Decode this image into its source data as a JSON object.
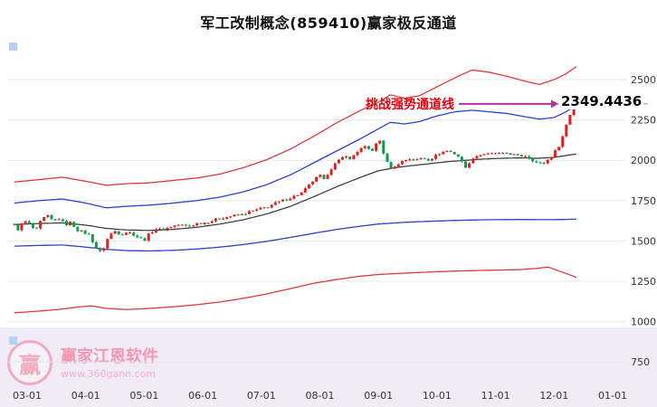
{
  "title": "军工改制概念(859410)赢家极反通道",
  "annotation": {
    "label": "挑战强势通道线",
    "price_label": "2349.4436",
    "arrow_color": "#bb2d9e"
  },
  "watermark": {
    "logo_char": "赢",
    "brand": "赢家江恩软件",
    "url": "www.360gann.com"
  },
  "colors": {
    "up": "#dd2222",
    "down": "#0e9c4a",
    "channel_outer": "#e0393b",
    "channel_inner": "#2f3fd3",
    "mid": "#333333",
    "grid": "#e8e8e8",
    "axis_text": "#333333",
    "level_line": "#999999",
    "marker": "#b5d2ec"
  },
  "chart_data": {
    "type": "candlestick-with-channel",
    "title": "军工改制概念(859410)赢家极反通道",
    "x_ticks": [
      "03-01",
      "04-01",
      "05-01",
      "06-01",
      "07-01",
      "08-01",
      "09-01",
      "10-01",
      "11-01",
      "12-01",
      "01-01"
    ],
    "x_tick_months": [
      3,
      4,
      5,
      6,
      7,
      8,
      9,
      10,
      11,
      12,
      13
    ],
    "y_ticks": [
      2500,
      2250,
      2000,
      1750,
      1500,
      1250,
      1000,
      750
    ],
    "ylim": [
      700,
      2650
    ],
    "x_range_months": [
      2.78,
      12.4
    ],
    "n_candles": 152,
    "last_price": 2349.4436,
    "close_keypoints": [
      [
        2.78,
        1595
      ],
      [
        2.85,
        1570
      ],
      [
        2.95,
        1625
      ],
      [
        3.05,
        1600
      ],
      [
        3.15,
        1560
      ],
      [
        3.25,
        1635
      ],
      [
        3.35,
        1655
      ],
      [
        3.45,
        1620
      ],
      [
        3.55,
        1640
      ],
      [
        3.65,
        1600
      ],
      [
        3.75,
        1615
      ],
      [
        3.85,
        1570
      ],
      [
        3.95,
        1555
      ],
      [
        4.05,
        1540
      ],
      [
        4.15,
        1480
      ],
      [
        4.22,
        1425
      ],
      [
        4.3,
        1450
      ],
      [
        4.4,
        1535
      ],
      [
        4.5,
        1560
      ],
      [
        4.6,
        1540
      ],
      [
        4.7,
        1555
      ],
      [
        4.8,
        1545
      ],
      [
        4.9,
        1520
      ],
      [
        5.0,
        1505
      ],
      [
        5.1,
        1550
      ],
      [
        5.2,
        1575
      ],
      [
        5.3,
        1565
      ],
      [
        5.45,
        1590
      ],
      [
        5.6,
        1600
      ],
      [
        5.75,
        1590
      ],
      [
        5.9,
        1608
      ],
      [
        6.05,
        1615
      ],
      [
        6.2,
        1630
      ],
      [
        6.35,
        1645
      ],
      [
        6.5,
        1655
      ],
      [
        6.65,
        1662
      ],
      [
        6.8,
        1680
      ],
      [
        6.95,
        1695
      ],
      [
        7.1,
        1710
      ],
      [
        7.25,
        1735
      ],
      [
        7.4,
        1755
      ],
      [
        7.55,
        1775
      ],
      [
        7.7,
        1800
      ],
      [
        7.8,
        1840
      ],
      [
        7.9,
        1880
      ],
      [
        8.0,
        1905
      ],
      [
        8.07,
        1875
      ],
      [
        8.15,
        1930
      ],
      [
        8.25,
        1975
      ],
      [
        8.35,
        2005
      ],
      [
        8.45,
        2030
      ],
      [
        8.52,
        2000
      ],
      [
        8.6,
        2045
      ],
      [
        8.7,
        2070
      ],
      [
        8.8,
        2085
      ],
      [
        8.87,
        2050
      ],
      [
        8.95,
        2095
      ],
      [
        9.02,
        2125
      ],
      [
        9.1,
        2030
      ],
      [
        9.17,
        1965
      ],
      [
        9.25,
        1945
      ],
      [
        9.35,
        1985
      ],
      [
        9.45,
        2000
      ],
      [
        9.55,
        2010
      ],
      [
        9.65,
        2000
      ],
      [
        9.75,
        2015
      ],
      [
        9.85,
        2005
      ],
      [
        9.95,
        2020
      ],
      [
        10.05,
        2045
      ],
      [
        10.15,
        2060
      ],
      [
        10.25,
        2050
      ],
      [
        10.35,
        2030
      ],
      [
        10.45,
        1975
      ],
      [
        10.52,
        1950
      ],
      [
        10.6,
        2015
      ],
      [
        10.7,
        2030
      ],
      [
        10.8,
        2040
      ],
      [
        10.9,
        2035
      ],
      [
        11.0,
        2045
      ],
      [
        11.1,
        2035
      ],
      [
        11.2,
        2045
      ],
      [
        11.3,
        2035
      ],
      [
        11.4,
        2025
      ],
      [
        11.5,
        2030
      ],
      [
        11.6,
        2010
      ],
      [
        11.7,
        1985
      ],
      [
        11.8,
        1975
      ],
      [
        11.9,
        2005
      ],
      [
        12.0,
        2045
      ],
      [
        12.08,
        2090
      ],
      [
        12.16,
        2160
      ],
      [
        12.24,
        2260
      ],
      [
        12.32,
        2320
      ],
      [
        12.4,
        2349.4436
      ]
    ],
    "channels": {
      "upper_outer": [
        [
          2.78,
          1865
        ],
        [
          3.2,
          1880
        ],
        [
          3.6,
          1895
        ],
        [
          4.0,
          1870
        ],
        [
          4.35,
          1845
        ],
        [
          4.7,
          1855
        ],
        [
          5.1,
          1860
        ],
        [
          5.5,
          1875
        ],
        [
          5.9,
          1890
        ],
        [
          6.3,
          1915
        ],
        [
          6.7,
          1955
        ],
        [
          7.1,
          2005
        ],
        [
          7.5,
          2070
        ],
        [
          7.9,
          2150
        ],
        [
          8.3,
          2235
        ],
        [
          8.7,
          2310
        ],
        [
          9.0,
          2360
        ],
        [
          9.2,
          2405
        ],
        [
          9.45,
          2385
        ],
        [
          9.7,
          2400
        ],
        [
          10.0,
          2455
        ],
        [
          10.3,
          2510
        ],
        [
          10.6,
          2560
        ],
        [
          10.9,
          2545
        ],
        [
          11.2,
          2520
        ],
        [
          11.5,
          2490
        ],
        [
          11.75,
          2470
        ],
        [
          12.0,
          2500
        ],
        [
          12.2,
          2535
        ],
        [
          12.4,
          2585
        ]
      ],
      "upper_inner": [
        [
          2.78,
          1735
        ],
        [
          3.2,
          1750
        ],
        [
          3.6,
          1760
        ],
        [
          4.0,
          1735
        ],
        [
          4.35,
          1705
        ],
        [
          4.7,
          1715
        ],
        [
          5.1,
          1722
        ],
        [
          5.5,
          1735
        ],
        [
          5.9,
          1750
        ],
        [
          6.3,
          1772
        ],
        [
          6.7,
          1805
        ],
        [
          7.1,
          1850
        ],
        [
          7.5,
          1910
        ],
        [
          7.9,
          1985
        ],
        [
          8.3,
          2060
        ],
        [
          8.7,
          2135
        ],
        [
          9.0,
          2195
        ],
        [
          9.2,
          2235
        ],
        [
          9.45,
          2225
        ],
        [
          9.7,
          2240
        ],
        [
          10.0,
          2275
        ],
        [
          10.3,
          2300
        ],
        [
          10.6,
          2310
        ],
        [
          10.9,
          2300
        ],
        [
          11.2,
          2290
        ],
        [
          11.5,
          2270
        ],
        [
          11.75,
          2255
        ],
        [
          12.0,
          2265
        ],
        [
          12.2,
          2300
        ],
        [
          12.4,
          2345
        ]
      ],
      "middle": [
        [
          2.78,
          1602
        ],
        [
          3.2,
          1608
        ],
        [
          3.6,
          1612
        ],
        [
          4.0,
          1598
        ],
        [
          4.35,
          1578
        ],
        [
          4.7,
          1568
        ],
        [
          5.1,
          1565
        ],
        [
          5.5,
          1572
        ],
        [
          5.9,
          1585
        ],
        [
          6.3,
          1605
        ],
        [
          6.7,
          1632
        ],
        [
          7.1,
          1668
        ],
        [
          7.5,
          1715
        ],
        [
          7.9,
          1775
        ],
        [
          8.3,
          1838
        ],
        [
          8.7,
          1895
        ],
        [
          9.0,
          1935
        ],
        [
          9.3,
          1955
        ],
        [
          9.6,
          1968
        ],
        [
          9.9,
          1980
        ],
        [
          10.2,
          1992
        ],
        [
          10.5,
          2000
        ],
        [
          10.8,
          2008
        ],
        [
          11.1,
          2012
        ],
        [
          11.4,
          2015
        ],
        [
          11.7,
          2012
        ],
        [
          12.0,
          2018
        ],
        [
          12.4,
          2040
        ]
      ],
      "lower_inner": [
        [
          2.78,
          1468
        ],
        [
          3.2,
          1472
        ],
        [
          3.6,
          1475
        ],
        [
          4.0,
          1462
        ],
        [
          4.35,
          1448
        ],
        [
          4.7,
          1440
        ],
        [
          5.1,
          1438
        ],
        [
          5.5,
          1442
        ],
        [
          5.9,
          1450
        ],
        [
          6.3,
          1462
        ],
        [
          6.7,
          1478
        ],
        [
          7.1,
          1498
        ],
        [
          7.5,
          1522
        ],
        [
          7.9,
          1548
        ],
        [
          8.3,
          1572
        ],
        [
          8.7,
          1592
        ],
        [
          9.0,
          1605
        ],
        [
          9.3,
          1612
        ],
        [
          9.6,
          1618
        ],
        [
          9.9,
          1622
        ],
        [
          10.2,
          1626
        ],
        [
          10.5,
          1629
        ],
        [
          10.8,
          1631
        ],
        [
          11.1,
          1632
        ],
        [
          11.4,
          1633
        ],
        [
          11.7,
          1632
        ],
        [
          12.0,
          1632
        ],
        [
          12.4,
          1635
        ]
      ],
      "lower_outer": [
        [
          2.78,
          1055
        ],
        [
          3.2,
          1065
        ],
        [
          3.6,
          1078
        ],
        [
          3.9,
          1092
        ],
        [
          4.1,
          1098
        ],
        [
          4.35,
          1082
        ],
        [
          4.7,
          1075
        ],
        [
          5.1,
          1082
        ],
        [
          5.5,
          1092
        ],
        [
          5.9,
          1105
        ],
        [
          6.3,
          1122
        ],
        [
          6.7,
          1145
        ],
        [
          7.1,
          1172
        ],
        [
          7.5,
          1205
        ],
        [
          7.9,
          1238
        ],
        [
          8.3,
          1262
        ],
        [
          8.7,
          1282
        ],
        [
          9.0,
          1292
        ],
        [
          9.3,
          1298
        ],
        [
          9.6,
          1303
        ],
        [
          9.9,
          1308
        ],
        [
          10.2,
          1312
        ],
        [
          10.5,
          1315
        ],
        [
          10.8,
          1318
        ],
        [
          11.1,
          1320
        ],
        [
          11.4,
          1322
        ],
        [
          11.7,
          1330
        ],
        [
          11.9,
          1338
        ],
        [
          12.1,
          1312
        ],
        [
          12.25,
          1292
        ],
        [
          12.4,
          1272
        ]
      ]
    }
  }
}
